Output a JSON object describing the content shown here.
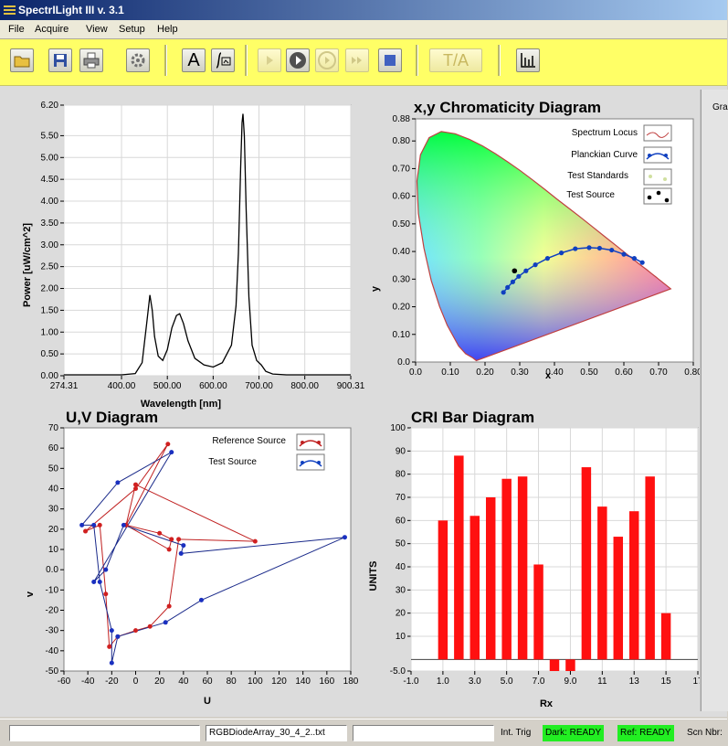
{
  "app": {
    "title": "SpectrILight III v. 3.1"
  },
  "menu": [
    "File",
    "Acquire",
    "View",
    "Setup",
    "Help"
  ],
  "toolbar": {
    "a_label": "A",
    "ta_label": "T/A"
  },
  "spectrum": {
    "ylabel": "Power [uW/cm^2]",
    "xlabel": "Wavelength [nm]",
    "xticks": [
      "274.31",
      "400.00",
      "500.00",
      "600.00",
      "700.00",
      "800.00",
      "900.31"
    ],
    "yticks": [
      "0.00",
      "0.50",
      "1.00",
      "1.50",
      "2.00",
      "2.50",
      "3.00",
      "3.50",
      "4.00",
      "4.50",
      "5.00",
      "5.50",
      "6.20"
    ],
    "chart_data": {
      "type": "line",
      "xlabel": "Wavelength [nm]",
      "ylabel": "Power [uW/cm^2]",
      "xlim": [
        274.31,
        900.31
      ],
      "ylim": [
        0,
        6.2
      ],
      "x": [
        274,
        350,
        400,
        430,
        445,
        455,
        462,
        467,
        472,
        480,
        490,
        500,
        510,
        520,
        527,
        535,
        545,
        560,
        580,
        600,
        620,
        640,
        650,
        655,
        660,
        663,
        665,
        668,
        672,
        678,
        685,
        695,
        705,
        715,
        730,
        760,
        800,
        850,
        900.31
      ],
      "y": [
        0.02,
        0.02,
        0.02,
        0.05,
        0.3,
        1.2,
        1.85,
        1.5,
        0.9,
        0.45,
        0.35,
        0.6,
        1.1,
        1.38,
        1.42,
        1.2,
        0.8,
        0.4,
        0.25,
        0.2,
        0.3,
        0.7,
        1.6,
        2.8,
        4.8,
        5.8,
        6.0,
        5.5,
        3.8,
        1.8,
        0.7,
        0.35,
        0.25,
        0.1,
        0.04,
        0.02,
        0.02,
        0.02,
        0.02
      ]
    }
  },
  "chromaticity": {
    "title": "x,y Chromaticity Diagram",
    "xlabel": "x",
    "ylabel": "y",
    "xticks": [
      "0.0",
      "0.10",
      "0.20",
      "0.30",
      "0.40",
      "0.50",
      "0.60",
      "0.70",
      "0.80"
    ],
    "yticks": [
      "0.0",
      "0.10",
      "0.20",
      "0.30",
      "0.40",
      "0.50",
      "0.60",
      "0.70",
      "0.80",
      "0.88"
    ],
    "legend": [
      "Spectrum Locus",
      "Planckian Curve",
      "Test Standards",
      "Test Source"
    ],
    "chart_data": {
      "type": "scatter",
      "title": "x,y Chromaticity Diagram",
      "xlabel": "x",
      "ylabel": "y",
      "xlim": [
        0,
        0.8
      ],
      "ylim": [
        0,
        0.88
      ],
      "series": [
        {
          "name": "Planckian Curve",
          "x": [
            0.253,
            0.265,
            0.28,
            0.297,
            0.318,
            0.345,
            0.38,
            0.42,
            0.46,
            0.5,
            0.53,
            0.565,
            0.6,
            0.63,
            0.653
          ],
          "y": [
            0.252,
            0.27,
            0.29,
            0.31,
            0.33,
            0.352,
            0.375,
            0.395,
            0.41,
            0.414,
            0.412,
            0.405,
            0.39,
            0.375,
            0.36
          ]
        },
        {
          "name": "Test Source",
          "x": [
            0.285
          ],
          "y": [
            0.33
          ]
        }
      ]
    }
  },
  "uv": {
    "title": "U,V Diagram",
    "xlabel": "U",
    "ylabel": "v",
    "xticks": [
      "-60",
      "-40",
      "-20",
      "0",
      "20",
      "40",
      "60",
      "80",
      "100",
      "120",
      "140",
      "160",
      "180"
    ],
    "yticks": [
      "70",
      "60",
      "50",
      "40",
      "30",
      "20",
      "10",
      "0.0",
      "-10",
      "-20",
      "-30",
      "-40",
      "-50"
    ],
    "legend": [
      "Reference Source",
      "Test Source"
    ],
    "chart_data": {
      "type": "scatter",
      "title": "U,V Diagram",
      "xlabel": "U",
      "ylabel": "v",
      "xlim": [
        -60,
        180
      ],
      "ylim": [
        -50,
        70
      ],
      "series": [
        {
          "name": "Reference Source",
          "u": [
            27,
            0,
            -42,
            -30,
            -25,
            -22,
            -15,
            0,
            12,
            28,
            36,
            100,
            0,
            -8,
            20,
            30,
            28,
            -8
          ],
          "v": [
            62,
            40,
            19,
            22,
            -12,
            -38,
            -33,
            -30,
            -28,
            -18,
            15,
            14,
            42,
            22,
            18,
            15,
            10,
            22
          ]
        },
        {
          "name": "Test Source",
          "u": [
            30,
            -15,
            -45,
            -35,
            -30,
            -20,
            -20,
            -15,
            25,
            55,
            175,
            38,
            40,
            -10,
            -25,
            -35
          ],
          "v": [
            58,
            43,
            22,
            22,
            -6,
            -30,
            -46,
            -33,
            -26,
            -15,
            16,
            8,
            12,
            22,
            0,
            -6
          ]
        }
      ]
    }
  },
  "cri": {
    "title": "CRI Bar Diagram",
    "xlabel": "Rx",
    "ylabel": "UNITS",
    "xticks": [
      "-1.0",
      "1.0",
      "3.0",
      "5.0",
      "7.0",
      "9.0",
      "11",
      "13",
      "15",
      "17"
    ],
    "yticks": [
      "100",
      "90",
      "80",
      "70",
      "60",
      "50",
      "40",
      "30",
      "20",
      "10",
      "-5.0"
    ],
    "chart_data": {
      "type": "bar",
      "xlabel": "Rx",
      "ylabel": "UNITS",
      "categories": [
        1,
        2,
        3,
        4,
        5,
        6,
        7,
        8,
        9,
        10,
        11,
        12,
        13,
        14,
        15
      ],
      "values": [
        60,
        88,
        62,
        70,
        78,
        79,
        41,
        -5,
        -5,
        83,
        66,
        53,
        64,
        79,
        20
      ],
      "xlim": [
        -1,
        17
      ],
      "ylim": [
        -5,
        100
      ]
    }
  },
  "status": {
    "field1": "",
    "file": "RGBDiodeArray_30_4_2..txt",
    "field3": "",
    "int_trig": "Int. Trig",
    "dark": "Dark: READY",
    "ref": "Ref: READY",
    "scn": "Scn Nbr:"
  },
  "right_pane": {
    "label": "Gra"
  }
}
